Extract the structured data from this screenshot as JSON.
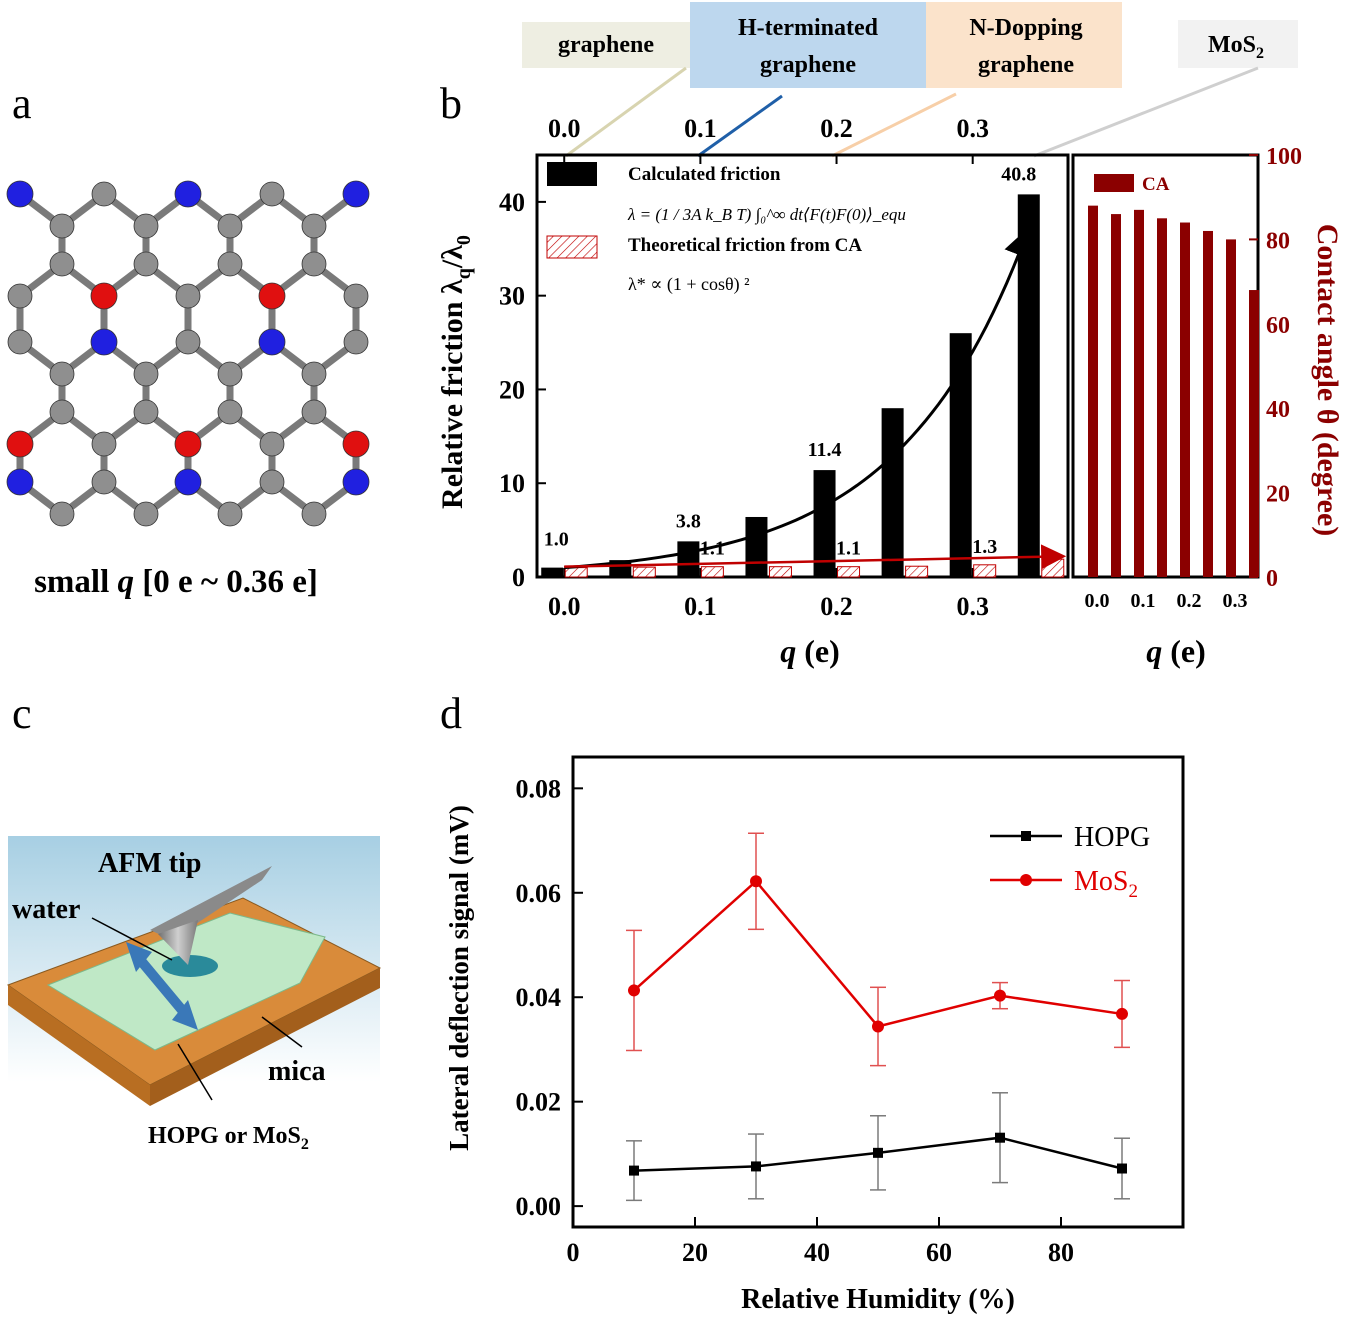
{
  "panel_labels": {
    "a": "a",
    "b": "b",
    "c": "c",
    "d": "d"
  },
  "panel_a": {
    "caption_pre": "small ",
    "caption_q": "q",
    "caption_post": " [0 e ~ 0.36 e]",
    "colors": {
      "carbon": "#8f8f8f",
      "nitrogen": "#2020e0",
      "oxygen": "#e01010"
    }
  },
  "panel_b": {
    "materials": [
      {
        "name": "graphene",
        "q": 0.0,
        "bg": "#eeeee2",
        "line": "#d8d4b0"
      },
      {
        "name": "H-terminated graphene",
        "line1": "H-terminated",
        "line2": "graphene",
        "q": 0.1,
        "bg": "#bdd7ee",
        "line": "#1f5fa8"
      },
      {
        "name": "N-Dopping graphene",
        "line1": "N-Dopping",
        "line2": "graphene",
        "q": 0.2,
        "bg": "#fbe3cb",
        "line": "#f7cfa8"
      },
      {
        "name": "MoS2",
        "main": "MoS",
        "sub": "2",
        "q": 0.35,
        "bg": "#f2f2f2",
        "line": "#cfcfcf"
      }
    ],
    "legend": {
      "calc": "Calculated friction",
      "formula1": "λ = (1 / 3A k_B T) ∫₀^∞ dt⟨F(t)F(0)⟩_equ",
      "theo": "Theoretical friction from CA",
      "formula2": "λ* ∝ (1 + cosθ) ²",
      "ca": "CA"
    },
    "ylabel_main": "Relative friction λ",
    "ylabel_sub1": "q",
    "ylabel_mid": "/λ",
    "ylabel_sub2": "0",
    "ylabel_right": "Contact angle θ (degree)",
    "xlabel_q": "q",
    "xlabel_unit": " (e)"
  },
  "panel_c": {
    "afm_tip": "AFM tip",
    "water": "water",
    "mica": "mica",
    "hopg": "HOPG or MoS",
    "hopg_sub": "2"
  },
  "chart_data": [
    {
      "id": "b-main",
      "type": "bar",
      "xlabel": "q (e)",
      "ylabel": "Relative friction λq/λ0",
      "xlim": [
        -0.02,
        0.37
      ],
      "ylim": [
        0,
        45
      ],
      "xticks": [
        "0.0",
        "0.1",
        "0.2",
        "0.3"
      ],
      "yticks": [
        "0",
        "10",
        "20",
        "30",
        "40"
      ],
      "top_ticks": [
        "0.0",
        "0.1",
        "0.2",
        "0.3"
      ],
      "series": [
        {
          "name": "Calculated friction",
          "x": [
            0.0,
            0.05,
            0.1,
            0.15,
            0.2,
            0.25,
            0.3,
            0.35
          ],
          "values": [
            1.0,
            1.8,
            3.8,
            6.4,
            11.4,
            18.0,
            26.0,
            40.8
          ],
          "color": "#000000"
        },
        {
          "name": "Theoretical friction from CA",
          "x": [
            0.0,
            0.05,
            0.1,
            0.15,
            0.2,
            0.25,
            0.3,
            0.35
          ],
          "values": [
            1.0,
            1.05,
            1.1,
            1.1,
            1.1,
            1.15,
            1.3,
            1.9
          ],
          "color": "#c00000"
        }
      ],
      "data_labels": [
        {
          "x": 0.0,
          "text": "1.0"
        },
        {
          "x": 0.1,
          "text": "3.8"
        },
        {
          "x": 0.2,
          "text": "11.4"
        },
        {
          "x": 0.35,
          "text": "40.8"
        },
        {
          "x": 0.1,
          "text": "1.1",
          "series": "theo"
        },
        {
          "x": 0.2,
          "text": "1.1",
          "series": "theo"
        },
        {
          "x": 0.3,
          "text": "1.3",
          "series": "theo"
        }
      ]
    },
    {
      "id": "b-ca",
      "type": "bar",
      "xlabel": "q (e)",
      "ylabel": "Contact angle θ (degree)",
      "ylim": [
        0,
        100
      ],
      "yticks": [
        "0",
        "20",
        "40",
        "60",
        "80",
        "100"
      ],
      "xticks": [
        "0.0",
        "0.1",
        "0.2",
        "0.3"
      ],
      "legend": "CA",
      "x": [
        0.0,
        0.05,
        0.1,
        0.15,
        0.2,
        0.25,
        0.3,
        0.35
      ],
      "values": [
        88,
        86,
        87,
        85,
        84,
        82,
        80,
        68
      ],
      "color": "#8b0000"
    },
    {
      "id": "d",
      "type": "line",
      "xlabel": "Relative Humidity (%)",
      "ylabel": "Lateral deflection signal (mV)",
      "xlim": [
        0,
        100
      ],
      "ylim": [
        -0.004,
        0.086
      ],
      "xticks": [
        "0",
        "20",
        "40",
        "60",
        "80"
      ],
      "yticks": [
        "0.00",
        "0.02",
        "0.04",
        "0.06",
        "0.08"
      ],
      "legend_position": "top-right",
      "series": [
        {
          "name": "HOPG",
          "x": [
            10,
            30,
            50,
            70,
            90
          ],
          "values": [
            0.0068,
            0.0076,
            0.0102,
            0.0131,
            0.0072
          ],
          "err": [
            0.0057,
            0.0062,
            0.0071,
            0.0086,
            0.0058
          ],
          "color": "#000000",
          "marker": "square"
        },
        {
          "name": "MoS2",
          "name_main": "MoS",
          "name_sub": "2",
          "x": [
            10,
            30,
            50,
            70,
            90
          ],
          "values": [
            0.0413,
            0.0622,
            0.0344,
            0.0403,
            0.0368
          ],
          "err": [
            0.0115,
            0.0092,
            0.0075,
            0.0025,
            0.0064
          ],
          "color": "#e00000",
          "marker": "circle"
        }
      ]
    }
  ]
}
